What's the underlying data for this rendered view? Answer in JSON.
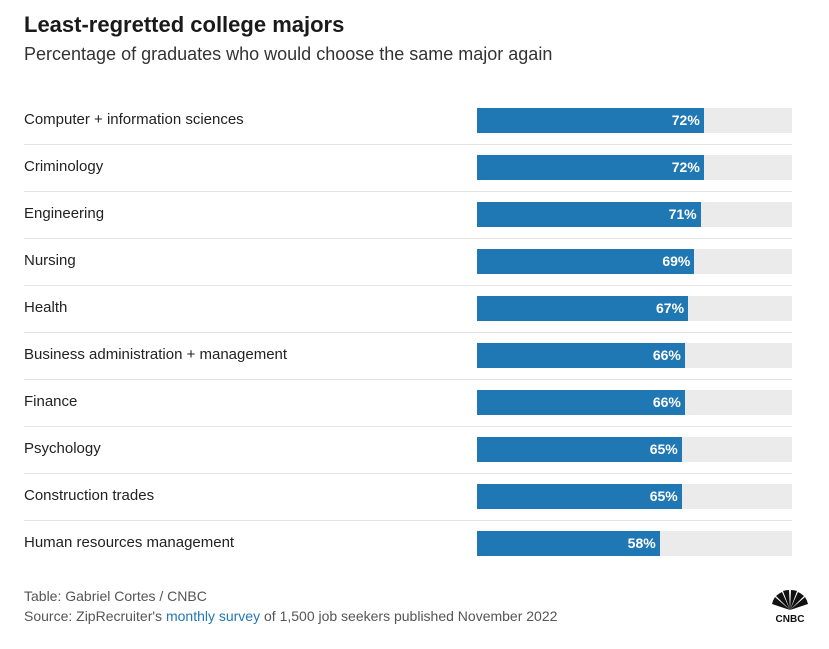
{
  "title": "Least-regretted college majors",
  "subtitle": "Percentage of graduates who would choose the same major again",
  "chart_data": {
    "type": "bar",
    "orientation": "horizontal",
    "categories": [
      "Computer + information sciences",
      "Criminology",
      "Engineering",
      "Nursing",
      "Health",
      "Business administration + management",
      "Finance",
      "Psychology",
      "Construction trades",
      "Human resources management"
    ],
    "values": [
      72,
      72,
      71,
      69,
      67,
      66,
      66,
      65,
      65,
      58
    ],
    "value_labels": [
      "72%",
      "72%",
      "71%",
      "69%",
      "67%",
      "66%",
      "66%",
      "65%",
      "65%",
      "58%"
    ],
    "xlim": [
      0,
      100
    ],
    "grid": false,
    "bar_color": "#1f77b4",
    "track_color": "#ebebeb"
  },
  "footer": {
    "credit": "Table: Gabriel Cortes / CNBC",
    "source_prefix": "Source: ZipRecruiter's",
    "source_link": "monthly survey",
    "source_suffix": "of 1,500 job seekers published November 2022"
  },
  "logo": {
    "icon": "cnbc-peacock-icon",
    "text": "CNBC"
  }
}
